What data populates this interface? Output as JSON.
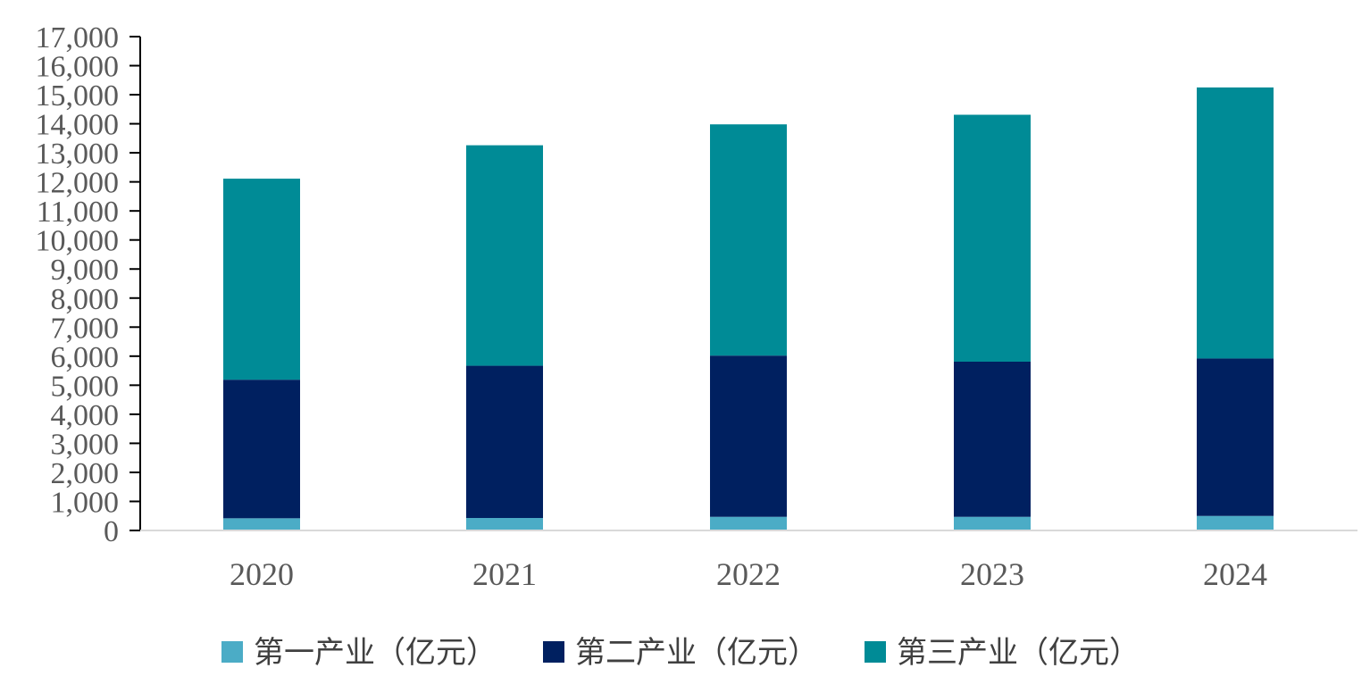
{
  "chart_data": {
    "type": "bar",
    "stacked": true,
    "title": "",
    "xlabel": "",
    "ylabel": "",
    "ylim": [
      0,
      17000
    ],
    "y_ticks": [
      0,
      1000,
      2000,
      3000,
      4000,
      5000,
      6000,
      7000,
      8000,
      9000,
      10000,
      11000,
      12000,
      13000,
      14000,
      15000,
      16000,
      17000
    ],
    "y_tick_labels": [
      "0",
      "1,000",
      "2,000",
      "3,000",
      "4,000",
      "5,000",
      "6,000",
      "7,000",
      "8,000",
      "9,000",
      "10,000",
      "11,000",
      "12,000",
      "13,000",
      "14,000",
      "15,000",
      "16,000",
      "17,000"
    ],
    "categories": [
      "2020",
      "2021",
      "2022",
      "2023",
      "2024"
    ],
    "series": [
      {
        "name": "第一产业（亿元）",
        "color": "#4bacc6",
        "values": [
          420,
          430,
          470,
          470,
          500
        ]
      },
      {
        "name": "第二产业（亿元）",
        "color": "#002060",
        "values": [
          4770,
          5240,
          5550,
          5340,
          5420
        ]
      },
      {
        "name": "第三产业（亿元）",
        "color": "#008b96",
        "values": [
          6920,
          7590,
          7960,
          8500,
          9330
        ]
      }
    ],
    "grid": false,
    "legend_position": "bottom"
  }
}
